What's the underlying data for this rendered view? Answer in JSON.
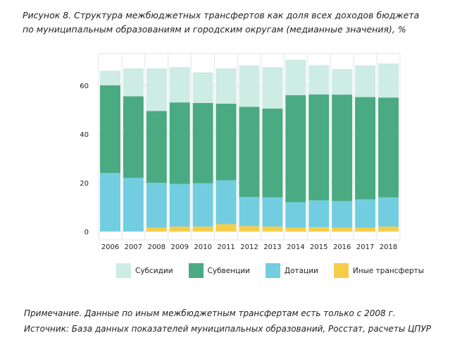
{
  "caption": {
    "line1": "Рисунок 8. Структура межбюджетных трансфертов как доля всех доходов бюджета",
    "line2": "по муниципальным образованиям и городским округам (медианные значения), %"
  },
  "chart_data": {
    "type": "bar",
    "stacked": true,
    "categories": [
      "2006",
      "2007",
      "2008",
      "2009",
      "2010",
      "2011",
      "2012",
      "2013",
      "2014",
      "2015",
      "2016",
      "2017",
      "2018"
    ],
    "series": [
      {
        "name": "Иные трансферты",
        "color": "#f5cd4b",
        "values": [
          0,
          0,
          1.5,
          2,
          2,
          3,
          2.2,
          2,
          1.5,
          1.8,
          1.5,
          1.5,
          2
        ]
      },
      {
        "name": "Дотации",
        "color": "#73cde0",
        "values": [
          24,
          22,
          18.5,
          17.5,
          17.8,
          18,
          12,
          12,
          10.5,
          11,
          11,
          11.7,
          12
        ]
      },
      {
        "name": "Субвенции",
        "color": "#4aaa82",
        "values": [
          36,
          33.5,
          29.5,
          33.5,
          33,
          31.5,
          37,
          36.5,
          44,
          43.5,
          43.7,
          42,
          41
        ]
      },
      {
        "name": "Субсидии",
        "color": "#cdece3",
        "values": [
          6,
          11.5,
          17.5,
          14.5,
          12.5,
          14.5,
          17,
          17,
          14.5,
          12,
          10.5,
          13,
          14
        ]
      }
    ],
    "legend_order": [
      "Субсидии",
      "Субвенции",
      "Дотации",
      "Иные трансферты"
    ],
    "y_ticks": [
      0,
      20,
      40,
      60
    ],
    "ylim": [
      0,
      70
    ],
    "grid": true,
    "legend_position": "bottom"
  },
  "notes": {
    "note": "Примечание. Данные по иным межбюджетным трансфертам есть только с 2008 г.",
    "source": "Источник: База данных показателей муниципальных образований, Росстат, расчеты ЦПУР"
  }
}
